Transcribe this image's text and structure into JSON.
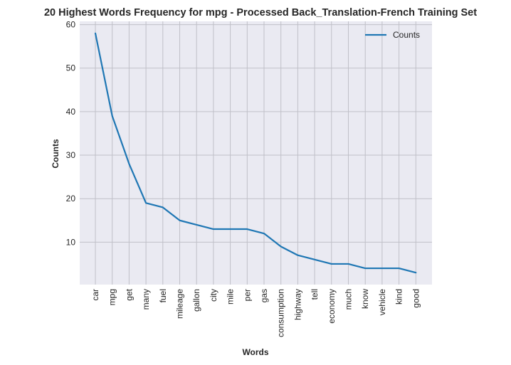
{
  "chart_data": {
    "type": "line",
    "title": "20 Highest Words Frequency for mpg - Processed Back_Translation-French Training Set",
    "xlabel": "Words",
    "ylabel": "Counts",
    "categories": [
      "car",
      "mpg",
      "get",
      "many",
      "fuel",
      "mileage",
      "gallon",
      "city",
      "mile",
      "per",
      "gas",
      "consumption",
      "highway",
      "tell",
      "economy",
      "much",
      "know",
      "vehicle",
      "kind",
      "good"
    ],
    "series": [
      {
        "name": "Counts",
        "values": [
          58,
          39,
          28,
          19,
          18,
          15,
          14,
          13,
          13,
          13,
          12,
          9,
          7,
          6,
          5,
          5,
          4,
          4,
          4,
          3
        ]
      }
    ],
    "yticks": [
      10,
      20,
      30,
      40,
      50,
      60
    ],
    "ylim": [
      0.25,
      60.75
    ],
    "grid": true,
    "legend": "top-right",
    "colors": {
      "line": "#1f77b4",
      "background": "#eaeaf2",
      "grid": "#c0c0c8"
    }
  }
}
